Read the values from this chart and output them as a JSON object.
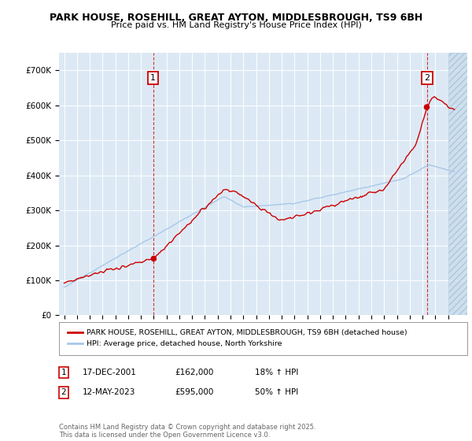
{
  "title1": "PARK HOUSE, ROSEHILL, GREAT AYTON, MIDDLESBROUGH, TS9 6BH",
  "title2": "Price paid vs. HM Land Registry's House Price Index (HPI)",
  "ylim": [
    0,
    750000
  ],
  "yticks": [
    0,
    100000,
    200000,
    300000,
    400000,
    500000,
    600000,
    700000
  ],
  "ytick_labels": [
    "£0",
    "£100K",
    "£200K",
    "£300K",
    "£400K",
    "£500K",
    "£600K",
    "£700K"
  ],
  "sale1_year": 2001.96,
  "sale1_price": 162000,
  "sale2_year": 2023.36,
  "sale2_price": 595000,
  "line_color_property": "#cc0000",
  "line_color_hpi": "#a8c8e8",
  "legend_label_property": "PARK HOUSE, ROSEHILL, GREAT AYTON, MIDDLESBROUGH, TS9 6BH (detached house)",
  "legend_label_hpi": "HPI: Average price, detached house, North Yorkshire",
  "annotation1_date": "17-DEC-2001",
  "annotation1_price": "£162,000",
  "annotation1_hpi": "18% ↑ HPI",
  "annotation2_date": "12-MAY-2023",
  "annotation2_price": "£595,000",
  "annotation2_hpi": "50% ↑ HPI",
  "footer": "Contains HM Land Registry data © Crown copyright and database right 2025.\nThis data is licensed under the Open Government Licence v3.0.",
  "bg_chart": "#dce9f5",
  "grid_color": "#ffffff",
  "title_fontsize": 9,
  "subtitle_fontsize": 8
}
